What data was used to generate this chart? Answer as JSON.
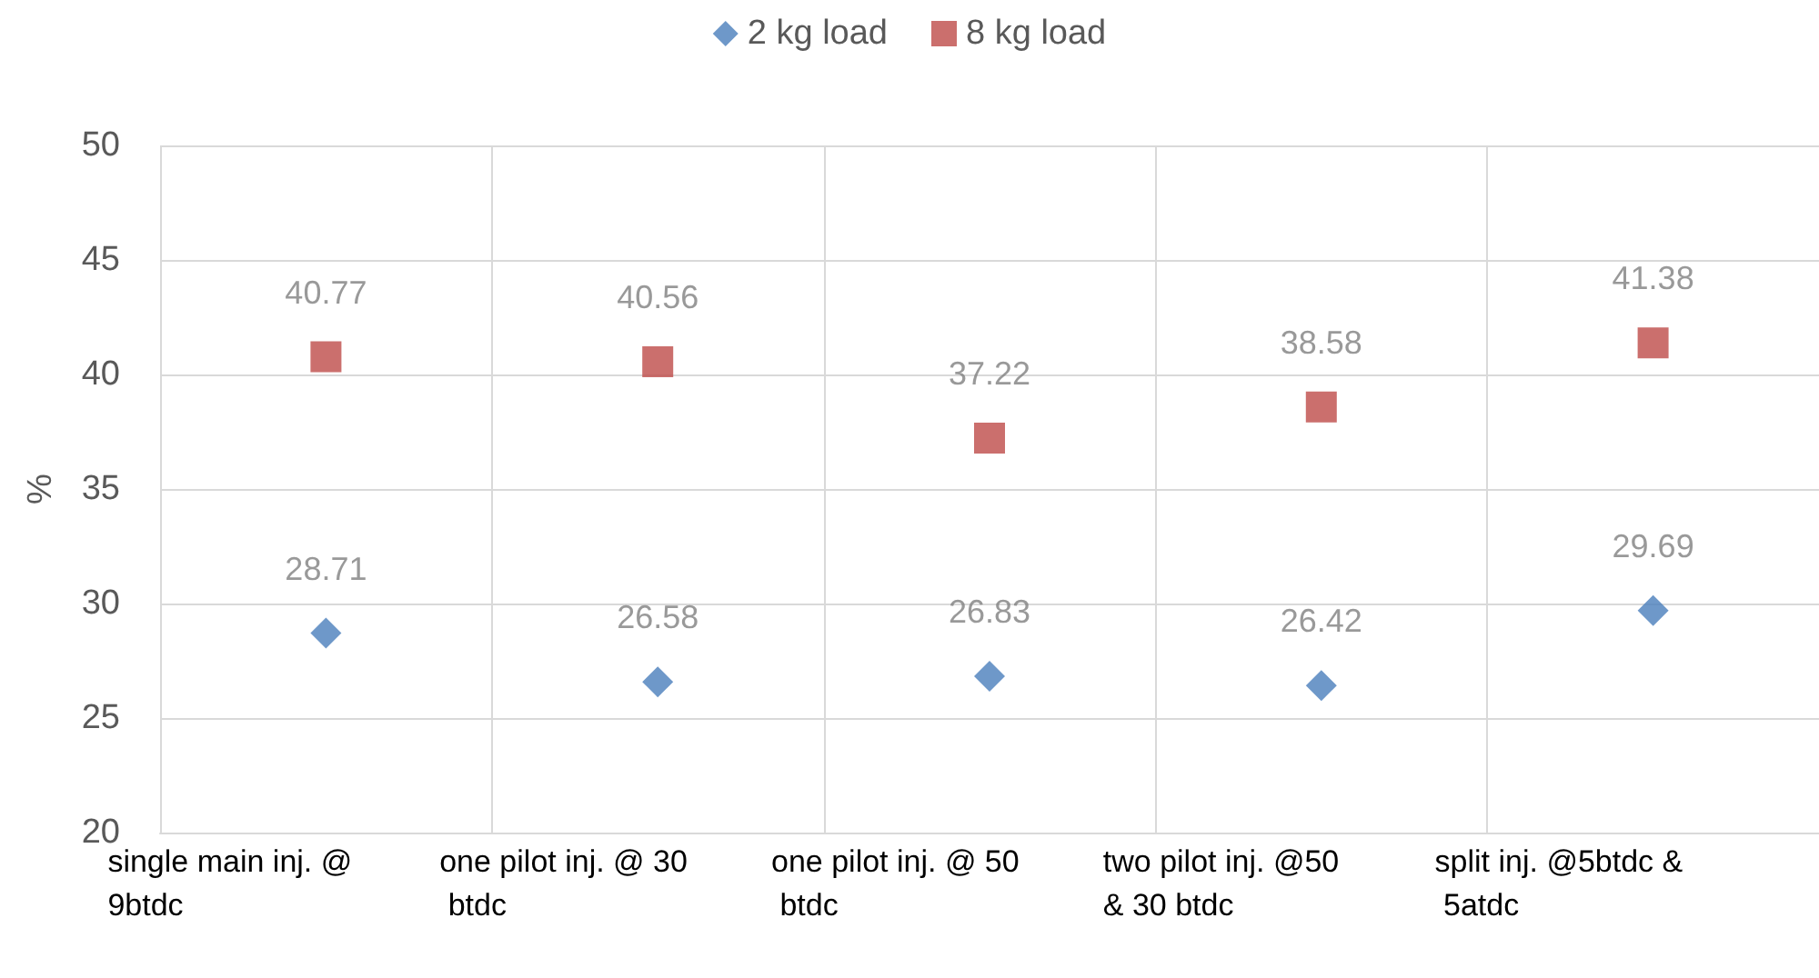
{
  "chart_data": {
    "type": "scatter",
    "ylabel": "%",
    "categories": [
      "single main inj. @ 9btdc",
      "one pilot inj. @ 30 btdc",
      "one pilot inj. @ 50 btdc",
      "two pilot inj. @50 & 30 btdc",
      "split inj. @5btdc & 5atdc"
    ],
    "series": [
      {
        "name": "2 kg load",
        "color": "#4a7ebb",
        "marker": "diamond",
        "values": [
          28.71,
          26.58,
          26.83,
          26.42,
          29.69
        ]
      },
      {
        "name": "8 kg load",
        "color": "#be4b48",
        "marker": "square",
        "values": [
          40.77,
          40.56,
          37.22,
          38.58,
          41.38
        ]
      }
    ],
    "ylim": [
      20,
      50
    ],
    "yticks": [
      20,
      25,
      30,
      35,
      40,
      45,
      50
    ],
    "grid": true,
    "legend": "top",
    "data_labels": true
  }
}
